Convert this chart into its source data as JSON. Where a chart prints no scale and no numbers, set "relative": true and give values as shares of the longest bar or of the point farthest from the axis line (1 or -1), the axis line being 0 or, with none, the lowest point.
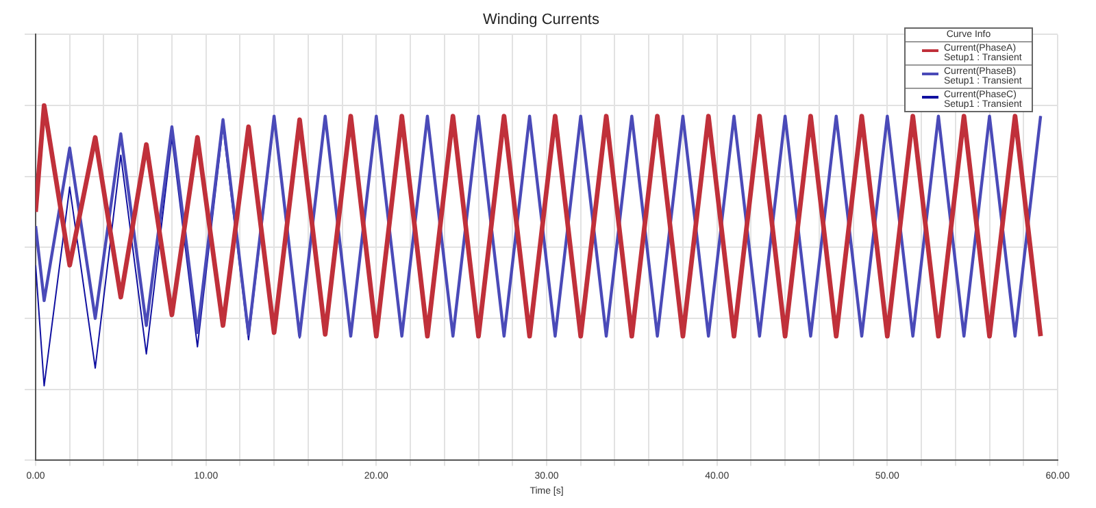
{
  "chart_data": {
    "type": "line",
    "title": "Winding Currents",
    "xlabel": "Time [s]",
    "relative": true,
    "legend": "top right",
    "legend_title": "Curve Info",
    "grid": true,
    "marker": "none",
    "line_style": "solid",
    "xlim": [
      0,
      60
    ],
    "xticks": [
      {
        "value": 0,
        "label": "0.00"
      },
      {
        "value": 2,
        "label": null
      },
      {
        "value": 4,
        "label": null
      },
      {
        "value": 6,
        "label": null
      },
      {
        "value": 8,
        "label": null
      },
      {
        "value": 10,
        "label": "10.00"
      },
      {
        "value": 12,
        "label": null
      },
      {
        "value": 14,
        "label": null
      },
      {
        "value": 16,
        "label": null
      },
      {
        "value": 18,
        "label": null
      },
      {
        "value": 20,
        "label": "20.00"
      },
      {
        "value": 22,
        "label": null
      },
      {
        "value": 24,
        "label": null
      },
      {
        "value": 26,
        "label": null
      },
      {
        "value": 28,
        "label": null
      },
      {
        "value": 30,
        "label": "30.00"
      },
      {
        "value": 32,
        "label": null
      },
      {
        "value": 34,
        "label": null
      },
      {
        "value": 36,
        "label": null
      },
      {
        "value": 38,
        "label": null
      },
      {
        "value": 40,
        "label": "40.00"
      },
      {
        "value": 42,
        "label": null
      },
      {
        "value": 44,
        "label": null
      },
      {
        "value": 46,
        "label": null
      },
      {
        "value": 48,
        "label": null
      },
      {
        "value": 50,
        "label": "50.00"
      },
      {
        "value": 52,
        "label": null
      },
      {
        "value": 54,
        "label": null
      },
      {
        "value": 56,
        "label": null
      },
      {
        "value": 58,
        "label": null
      },
      {
        "value": 60,
        "label": "60.00"
      }
    ],
    "x": [
      0,
      0.5,
      2,
      3.5,
      5,
      6.5,
      8,
      9.5,
      11,
      12.5,
      14,
      15.5,
      17,
      18.5,
      20,
      21.5,
      23,
      24.5,
      26,
      27.5,
      29,
      30.5,
      32,
      33.5,
      35,
      36.5,
      38,
      39.5,
      41,
      42.5,
      44,
      45.5,
      47,
      48.5,
      50,
      51.5,
      53,
      54.5,
      56,
      57.5,
      59
    ],
    "series": [
      {
        "name": "Current(PhaseA)\nSetup1 : Transient",
        "color": "#c0303a",
        "values": [
          0.7,
          1.0,
          0.55,
          0.91,
          0.46,
          0.89,
          0.41,
          0.91,
          0.38,
          0.94,
          0.36,
          0.96,
          0.355,
          0.97,
          0.35,
          0.97,
          0.35,
          0.97,
          0.35,
          0.97,
          0.35,
          0.97,
          0.35,
          0.97,
          0.35,
          0.97,
          0.35,
          0.97,
          0.35,
          0.97,
          0.35,
          0.97,
          0.35,
          0.97,
          0.35,
          0.97,
          0.35,
          0.97,
          0.35,
          0.97,
          0.35
        ]
      },
      {
        "name": "Current(PhaseB)\nSetup1 : Transient",
        "color": "#4a4ab8",
        "values": [
          0.66,
          0.45,
          0.88,
          0.4,
          0.92,
          0.38,
          0.94,
          0.36,
          0.96,
          0.355,
          0.97,
          0.35,
          0.97,
          0.35,
          0.97,
          0.35,
          0.97,
          0.35,
          0.97,
          0.35,
          0.97,
          0.35,
          0.97,
          0.35,
          0.97,
          0.35,
          0.97,
          0.35,
          0.97,
          0.35,
          0.97,
          0.35,
          0.97,
          0.35,
          0.97,
          0.35,
          0.97,
          0.35,
          0.97,
          0.35,
          0.97
        ]
      },
      {
        "name": "Current(PhaseC)\nSetup1 : Transient",
        "color": "#1010a0",
        "values": [
          0.55,
          0.21,
          0.77,
          0.26,
          0.86,
          0.3,
          0.91,
          0.32,
          0.94,
          0.34,
          0.96,
          0.345,
          0.97,
          0.35,
          0.97,
          0.35,
          0.97,
          0.35,
          0.97,
          0.35,
          0.97,
          0.35,
          0.97,
          0.35,
          0.97,
          0.35,
          0.97,
          0.35,
          0.97,
          0.35,
          0.97,
          0.35,
          0.97,
          0.35,
          0.97,
          0.35,
          0.97,
          0.35,
          0.97,
          0.35,
          0.97
        ]
      }
    ]
  }
}
